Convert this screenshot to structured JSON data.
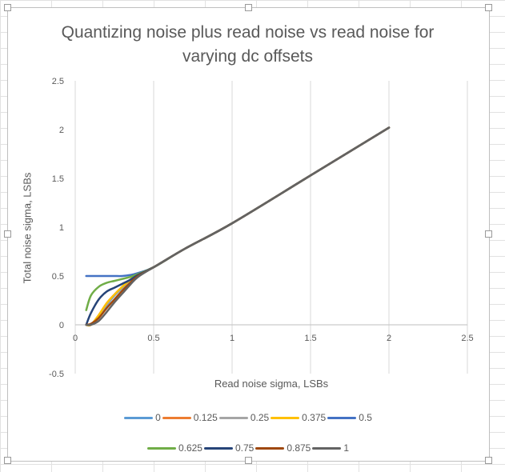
{
  "chart_data": {
    "type": "line",
    "title_lines": [
      "Quantizing noise plus read noise vs read noise for",
      "varying dc offsets"
    ],
    "xlabel": "Read noise sigma, LSBs",
    "ylabel": "Total noise sigma, LSBs",
    "xlim": [
      0,
      2.5
    ],
    "ylim": [
      -0.5,
      2.5
    ],
    "x_ticks": [
      "0",
      "0.5",
      "1",
      "1.5",
      "2",
      "2.5"
    ],
    "y_ticks": [
      "-0.5",
      "0",
      "0.5",
      "1",
      "1.5",
      "2",
      "2.5"
    ],
    "grid": "vertical",
    "legend_position": "bottom",
    "x": [
      0.07,
      0.1,
      0.15,
      0.2,
      0.25,
      0.3,
      0.35,
      0.4,
      0.5,
      0.7,
      1.0,
      1.5,
      2.0
    ],
    "series": [
      {
        "name": "0",
        "color": "#5b9bd5",
        "values": [
          0.0,
          0.0,
          0.08,
          0.2,
          0.3,
          0.38,
          0.46,
          0.52,
          0.59,
          0.78,
          1.04,
          1.53,
          2.02
        ]
      },
      {
        "name": "0.125",
        "color": "#ed7d31",
        "values": [
          0.0,
          0.0,
          0.1,
          0.22,
          0.31,
          0.39,
          0.46,
          0.52,
          0.59,
          0.78,
          1.04,
          1.53,
          2.02
        ]
      },
      {
        "name": "0.25",
        "color": "#a5a5a5",
        "values": [
          0.0,
          0.0,
          0.09,
          0.21,
          0.31,
          0.39,
          0.46,
          0.52,
          0.59,
          0.78,
          1.04,
          1.53,
          2.02
        ]
      },
      {
        "name": "0.375",
        "color": "#ffc000",
        "values": [
          0.0,
          0.0,
          0.1,
          0.22,
          0.31,
          0.39,
          0.46,
          0.52,
          0.59,
          0.78,
          1.04,
          1.53,
          2.02
        ]
      },
      {
        "name": "0.5",
        "color": "#4472c4",
        "values": [
          0.5,
          0.5,
          0.5,
          0.5,
          0.5,
          0.5,
          0.51,
          0.53,
          0.59,
          0.78,
          1.04,
          1.53,
          2.02
        ]
      },
      {
        "name": "0.625",
        "color": "#70ad47",
        "values": [
          0.15,
          0.3,
          0.39,
          0.43,
          0.45,
          0.47,
          0.49,
          0.52,
          0.59,
          0.78,
          1.04,
          1.53,
          2.02
        ]
      },
      {
        "name": "0.75",
        "color": "#264478",
        "values": [
          0.0,
          0.12,
          0.26,
          0.34,
          0.38,
          0.42,
          0.46,
          0.51,
          0.59,
          0.78,
          1.04,
          1.53,
          2.02
        ]
      },
      {
        "name": "0.875",
        "color": "#9e480e",
        "values": [
          0.0,
          0.01,
          0.07,
          0.17,
          0.26,
          0.35,
          0.43,
          0.5,
          0.59,
          0.78,
          1.04,
          1.53,
          2.02
        ]
      },
      {
        "name": "1",
        "color": "#636363",
        "values": [
          0.0,
          0.0,
          0.04,
          0.13,
          0.23,
          0.32,
          0.41,
          0.49,
          0.59,
          0.78,
          1.04,
          1.53,
          2.02
        ]
      }
    ]
  }
}
